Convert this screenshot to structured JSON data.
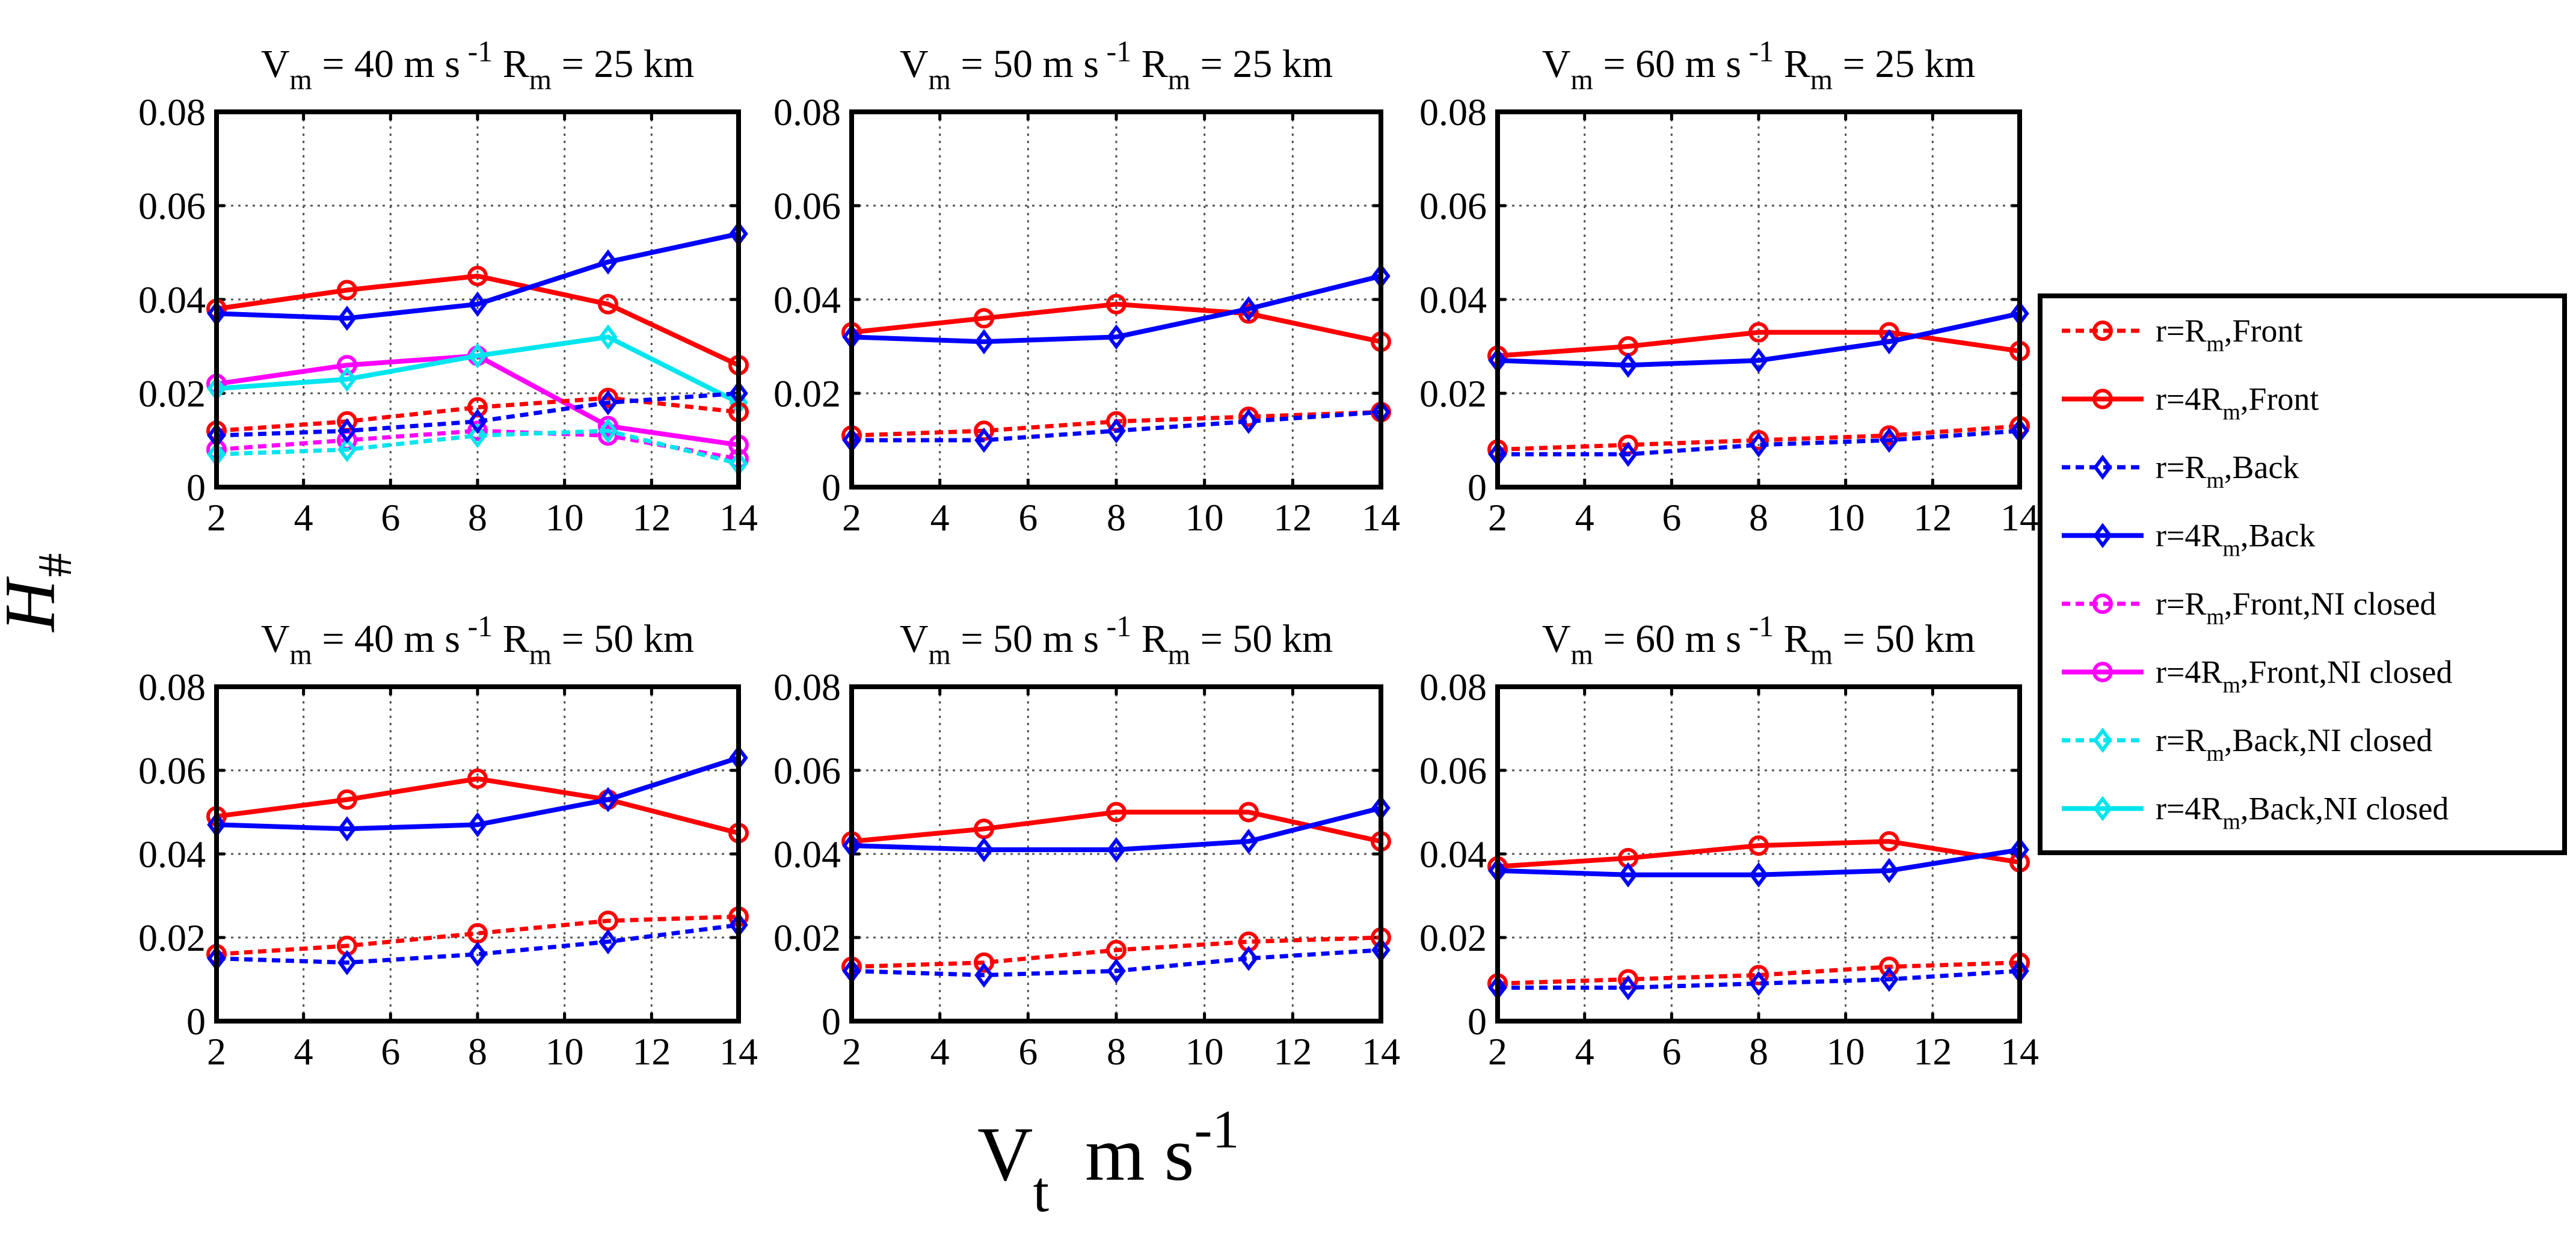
{
  "figure": {
    "ylabel_main": "H",
    "ylabel_sub": "#",
    "xlabel_main": "V",
    "xlabel_sub": "t",
    "xlabel_units": "m s",
    "xlabel_exp": "-1"
  },
  "chart_data": [
    {
      "type": "line",
      "title_parts": {
        "vm": "V",
        "vm_sub": "m",
        "vm_val": " = 40 m s",
        "vm_exp": " -1",
        "rm": "R",
        "rm_sub": "m",
        "rm_val": " = 25 km"
      },
      "x": [
        2,
        5,
        8,
        11,
        14
      ],
      "xlim": [
        2,
        14
      ],
      "ylim": [
        0,
        0.08
      ],
      "xticks": [
        "2",
        "4",
        "6",
        "8",
        "10",
        "12",
        "14"
      ],
      "yticks": [
        "0",
        "0.02",
        "0.04",
        "0.06",
        "0.08"
      ],
      "series": [
        {
          "name": "r=Rm,Front,NI closed",
          "values": [
            0.008,
            0.01,
            0.012,
            0.011,
            0.006
          ]
        },
        {
          "name": "r=4Rm,Front,NI closed",
          "values": [
            0.022,
            0.026,
            0.028,
            0.013,
            0.009
          ]
        },
        {
          "name": "r=Rm,Back,NI closed",
          "values": [
            0.007,
            0.008,
            0.011,
            0.012,
            0.005
          ]
        },
        {
          "name": "r=4Rm,Back,NI closed",
          "values": [
            0.021,
            0.023,
            0.028,
            0.032,
            0.018
          ]
        },
        {
          "name": "r=Rm,Front",
          "values": [
            0.012,
            0.014,
            0.017,
            0.019,
            0.016
          ]
        },
        {
          "name": "r=Rm,Back",
          "values": [
            0.011,
            0.012,
            0.014,
            0.018,
            0.02
          ]
        },
        {
          "name": "r=4Rm,Front",
          "values": [
            0.038,
            0.042,
            0.045,
            0.039,
            0.026
          ]
        },
        {
          "name": "r=4Rm,Back",
          "values": [
            0.037,
            0.036,
            0.039,
            0.048,
            0.054
          ]
        }
      ]
    },
    {
      "type": "line",
      "title_parts": {
        "vm": "V",
        "vm_sub": "m",
        "vm_val": " = 50 m s",
        "vm_exp": " -1",
        "rm": "R",
        "rm_sub": "m",
        "rm_val": " = 25 km"
      },
      "x": [
        2,
        5,
        8,
        11,
        14
      ],
      "xlim": [
        2,
        14
      ],
      "ylim": [
        0,
        0.08
      ],
      "xticks": [
        "2",
        "4",
        "6",
        "8",
        "10",
        "12",
        "14"
      ],
      "yticks": [
        "0",
        "0.02",
        "0.04",
        "0.06",
        "0.08"
      ],
      "series": [
        {
          "name": "r=Rm,Front",
          "values": [
            0.011,
            0.012,
            0.014,
            0.015,
            0.016
          ]
        },
        {
          "name": "r=Rm,Back",
          "values": [
            0.01,
            0.01,
            0.012,
            0.014,
            0.016
          ]
        },
        {
          "name": "r=4Rm,Front",
          "values": [
            0.033,
            0.036,
            0.039,
            0.037,
            0.031
          ]
        },
        {
          "name": "r=4Rm,Back",
          "values": [
            0.032,
            0.031,
            0.032,
            0.038,
            0.045
          ]
        }
      ]
    },
    {
      "type": "line",
      "title_parts": {
        "vm": "V",
        "vm_sub": "m",
        "vm_val": " = 60 m s",
        "vm_exp": " -1",
        "rm": "R",
        "rm_sub": "m",
        "rm_val": " = 25 km"
      },
      "x": [
        2,
        5,
        8,
        11,
        14
      ],
      "xlim": [
        2,
        14
      ],
      "ylim": [
        0,
        0.08
      ],
      "xticks": [
        "2",
        "4",
        "6",
        "8",
        "10",
        "12",
        "14"
      ],
      "yticks": [
        "0",
        "0.02",
        "0.04",
        "0.06",
        "0.08"
      ],
      "series": [
        {
          "name": "r=Rm,Front",
          "values": [
            0.008,
            0.009,
            0.01,
            0.011,
            0.013
          ]
        },
        {
          "name": "r=Rm,Back",
          "values": [
            0.007,
            0.007,
            0.009,
            0.01,
            0.012
          ]
        },
        {
          "name": "r=4Rm,Front",
          "values": [
            0.028,
            0.03,
            0.033,
            0.033,
            0.029
          ]
        },
        {
          "name": "r=4Rm,Back",
          "values": [
            0.027,
            0.026,
            0.027,
            0.031,
            0.037
          ]
        }
      ]
    },
    {
      "type": "line",
      "title_parts": {
        "vm": "V",
        "vm_sub": "m",
        "vm_val": " = 40 m s",
        "vm_exp": " -1",
        "rm": "R",
        "rm_sub": "m",
        "rm_val": " = 50 km"
      },
      "x": [
        2,
        5,
        8,
        11,
        14
      ],
      "xlim": [
        2,
        14
      ],
      "ylim": [
        0,
        0.08
      ],
      "xticks": [
        "2",
        "4",
        "6",
        "8",
        "10",
        "12",
        "14"
      ],
      "yticks": [
        "0",
        "0.02",
        "0.04",
        "0.06",
        "0.08"
      ],
      "series": [
        {
          "name": "r=Rm,Front",
          "values": [
            0.016,
            0.018,
            0.021,
            0.024,
            0.025
          ]
        },
        {
          "name": "r=Rm,Back",
          "values": [
            0.015,
            0.014,
            0.016,
            0.019,
            0.023
          ]
        },
        {
          "name": "r=4Rm,Front",
          "values": [
            0.049,
            0.053,
            0.058,
            0.053,
            0.045
          ]
        },
        {
          "name": "r=4Rm,Back",
          "values": [
            0.047,
            0.046,
            0.047,
            0.053,
            0.063
          ]
        }
      ]
    },
    {
      "type": "line",
      "title_parts": {
        "vm": "V",
        "vm_sub": "m",
        "vm_val": " = 50 m s",
        "vm_exp": " -1",
        "rm": "R",
        "rm_sub": "m",
        "rm_val": " = 50 km"
      },
      "x": [
        2,
        5,
        8,
        11,
        14
      ],
      "xlim": [
        2,
        14
      ],
      "ylim": [
        0,
        0.08
      ],
      "xticks": [
        "2",
        "4",
        "6",
        "8",
        "10",
        "12",
        "14"
      ],
      "yticks": [
        "0",
        "0.02",
        "0.04",
        "0.06",
        "0.08"
      ],
      "series": [
        {
          "name": "r=Rm,Front",
          "values": [
            0.013,
            0.014,
            0.017,
            0.019,
            0.02
          ]
        },
        {
          "name": "r=Rm,Back",
          "values": [
            0.012,
            0.011,
            0.012,
            0.015,
            0.017
          ]
        },
        {
          "name": "r=4Rm,Front",
          "values": [
            0.043,
            0.046,
            0.05,
            0.05,
            0.043
          ]
        },
        {
          "name": "r=4Rm,Back",
          "values": [
            0.042,
            0.041,
            0.041,
            0.043,
            0.051
          ]
        }
      ]
    },
    {
      "type": "line",
      "title_parts": {
        "vm": "V",
        "vm_sub": "m",
        "vm_val": " = 60 m s",
        "vm_exp": " -1",
        "rm": "R",
        "rm_sub": "m",
        "rm_val": " = 50 km"
      },
      "x": [
        2,
        5,
        8,
        11,
        14
      ],
      "xlim": [
        2,
        14
      ],
      "ylim": [
        0,
        0.08
      ],
      "xticks": [
        "2",
        "4",
        "6",
        "8",
        "10",
        "12",
        "14"
      ],
      "yticks": [
        "0",
        "0.02",
        "0.04",
        "0.06",
        "0.08"
      ],
      "series": [
        {
          "name": "r=Rm,Front",
          "values": [
            0.009,
            0.01,
            0.011,
            0.013,
            0.014
          ]
        },
        {
          "name": "r=Rm,Back",
          "values": [
            0.008,
            0.008,
            0.009,
            0.01,
            0.012
          ]
        },
        {
          "name": "r=4Rm,Front",
          "values": [
            0.037,
            0.039,
            0.042,
            0.043,
            0.038
          ]
        },
        {
          "name": "r=4Rm,Back",
          "values": [
            0.036,
            0.035,
            0.035,
            0.036,
            0.041
          ]
        }
      ]
    }
  ],
  "legend": {
    "placement": "right",
    "entries": [
      {
        "key": "r=Rm,Front",
        "pre": "r=R",
        "sub": "m",
        "post": ",Front",
        "color": "#ff0000",
        "dashed": true,
        "marker": "circle"
      },
      {
        "key": "r=4Rm,Front",
        "pre": "r=4R",
        "sub": "m",
        "post": ",Front",
        "color": "#ff0000",
        "dashed": false,
        "marker": "circle"
      },
      {
        "key": "r=Rm,Back",
        "pre": "r=R",
        "sub": "m",
        "post": ",Back",
        "color": "#0000ff",
        "dashed": true,
        "marker": "diamond"
      },
      {
        "key": "r=4Rm,Back",
        "pre": "r=4R",
        "sub": "m",
        "post": ",Back",
        "color": "#0000ff",
        "dashed": false,
        "marker": "diamond"
      },
      {
        "key": "r=Rm,Front,NI closed",
        "pre": "r=R",
        "sub": "m",
        "post": ",Front,NI closed",
        "color": "#ff00ff",
        "dashed": true,
        "marker": "circle"
      },
      {
        "key": "r=4Rm,Front,NI closed",
        "pre": "r=4R",
        "sub": "m",
        "post": ",Front,NI closed",
        "color": "#ff00ff",
        "dashed": false,
        "marker": "circle"
      },
      {
        "key": "r=Rm,Back,NI closed",
        "pre": "r=R",
        "sub": "m",
        "post": ",Back,NI closed",
        "color": "#00e5ee",
        "dashed": true,
        "marker": "diamond"
      },
      {
        "key": "r=4Rm,Back,NI closed",
        "pre": "r=4R",
        "sub": "m",
        "post": ",Back,NI closed",
        "color": "#00e5ee",
        "dashed": false,
        "marker": "diamond"
      }
    ]
  }
}
